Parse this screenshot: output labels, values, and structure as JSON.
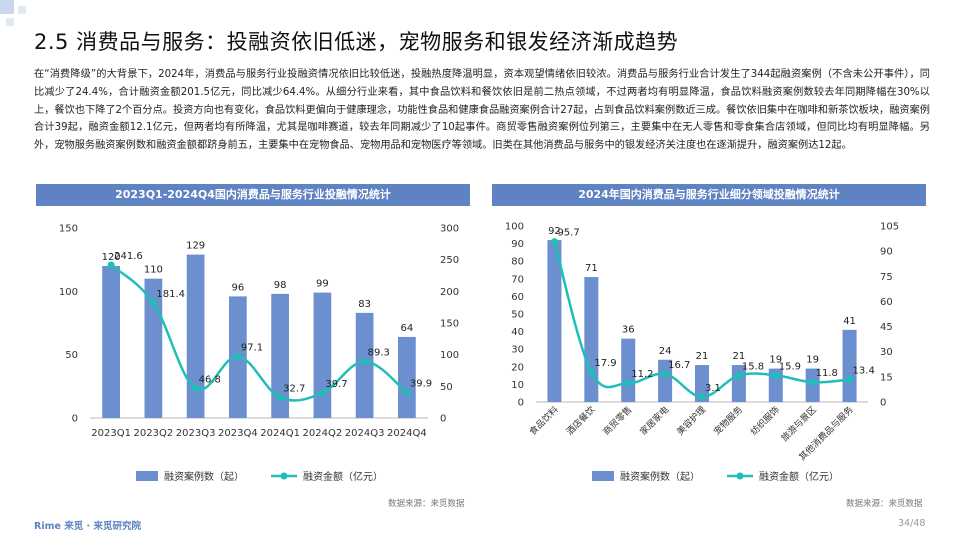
{
  "title": "2.5 消费品与服务：投融资依旧低迷，宠物服务和银发经济渐成趋势",
  "intro": "在“消费降级”的大背景下，2024年，消费品与服务行业投融资情况依旧比较低迷，投融热度降温明显，资本观望情绪依旧较浓。消费品与服务行业合计发生了344起融资案例（不含未公开事件），同比减少了24.4%，合计融资金额201.5亿元，同比减少64.4%。从细分行业来看，其中食品饮料和餐饮依旧是前二热点领域，不过两者均有明显降温，食品饮料融资案例数较去年同期降幅在30%以上，餐饮也下降了2个百分点。投资方向也有变化，食品饮料更偏向于健康理念，功能性食品和健康食品融资案例合计27起，占到食品饮料案例数近三成。餐饮依旧集中在咖啡和新茶饮板块，融资案例合计39起，融资金额12.1亿元，但两者均有所降温，尤其是咖啡赛道，较去年同期减少了10起事件。商贸零售融资案例位列第三，主要集中在无人零售和零食集合店领域，但同比均有明显降幅。另外，宠物服务融资案例数和融资金额都跻身前五，主要集中在宠物食品、宠物用品和宠物医疗等领域。旧类在其他消费品与服务中的银发经济关注度也在逐渐提升，融资案例达12起。",
  "footer": {
    "logo": "Rime 来觅 · 来觅研究院",
    "page": "34/48"
  },
  "colors": {
    "bar": "#6c8fcf",
    "line": "#1fbfb8",
    "header": "#5e82c2"
  },
  "chart_data": [
    {
      "type": "bar",
      "title": "2023Q1-2024Q4国内消费品与服务行业投融情况统计",
      "categories": [
        "2023Q1",
        "2023Q2",
        "2023Q3",
        "2023Q4",
        "2024Q1",
        "2024Q2",
        "2024Q3",
        "2024Q4"
      ],
      "series": [
        {
          "name": "融资案例数（起）",
          "type": "bar",
          "axis": "left",
          "values": [
            120,
            110,
            129,
            96,
            98,
            99,
            83,
            64
          ],
          "labels": [
            "120",
            "110",
            "129",
            "96",
            "98",
            "99",
            "83",
            "64"
          ]
        },
        {
          "name": "融资金额（亿元）",
          "type": "line",
          "axis": "right",
          "values": [
            241.6,
            181.4,
            46.8,
            97.1,
            32.7,
            39.7,
            89.3,
            39.9
          ],
          "labels": [
            "241.6",
            "181.4",
            "46.8",
            "97.1",
            "32.7",
            "39.7",
            "89.3",
            "39.9"
          ]
        }
      ],
      "left_axis": {
        "ylim": [
          0,
          150
        ],
        "ticks": [
          "0",
          "50",
          "100",
          "150"
        ]
      },
      "right_axis": {
        "ylim": [
          0,
          300
        ],
        "ticks": [
          "0",
          "50",
          "100",
          "150",
          "200",
          "250",
          "300"
        ]
      },
      "legend": "bottom",
      "source": "数据来源：来觅数据"
    },
    {
      "type": "bar",
      "title": "2024年国内消费品与服务行业细分领域投融情况统计",
      "categories": [
        "食品饮料",
        "酒店餐饮",
        "商贸零售",
        "家居家电",
        "美容护理",
        "宠物服务",
        "纺织服饰",
        "旅游与景区",
        "其他消费品与服务"
      ],
      "series": [
        {
          "name": "融资案例数（起）",
          "type": "bar",
          "axis": "left",
          "values": [
            92,
            71,
            36,
            24,
            21,
            21,
            19,
            19,
            41
          ],
          "labels": [
            "92",
            "71",
            "36",
            "24",
            "21",
            "21",
            "19",
            "19",
            "41"
          ]
        },
        {
          "name": "融资金额（亿元）",
          "type": "line",
          "axis": "right",
          "values": [
            95.7,
            17.9,
            11.2,
            16.7,
            3.1,
            15.8,
            15.9,
            11.8,
            13.4
          ],
          "labels": [
            "95.7",
            "17.9",
            "11.2",
            "16.7",
            "3.1",
            "15.8",
            "15.9",
            "11.8",
            "13.4"
          ]
        }
      ],
      "left_axis": {
        "ylim": [
          0,
          100
        ],
        "ticks": [
          "0",
          "10",
          "20",
          "30",
          "40",
          "50",
          "60",
          "70",
          "80",
          "90",
          "100"
        ]
      },
      "right_axis": {
        "ylim": [
          0,
          105
        ],
        "ticks": [
          "0",
          "15",
          "30",
          "45",
          "60",
          "75",
          "90",
          "105"
        ]
      },
      "legend": "bottom",
      "source": "数据来源：来觅数据"
    }
  ]
}
